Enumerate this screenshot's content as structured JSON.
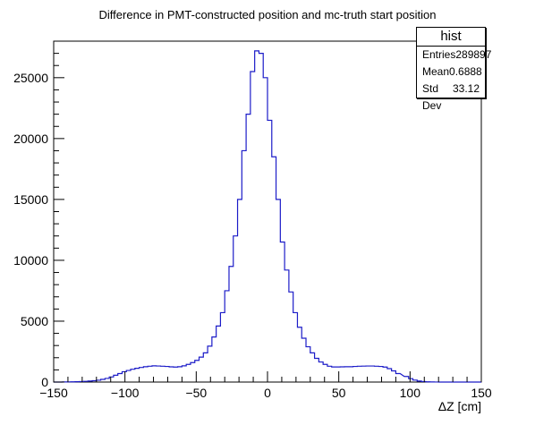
{
  "chart_data": {
    "type": "histogram",
    "title": "Difference in PMT-constructed position and mc-truth start position",
    "xlabel": "ΔZ [cm]",
    "ylabel": "",
    "xlim": [
      -150,
      150
    ],
    "ylim": [
      0,
      28000
    ],
    "xticks": [
      -150,
      -100,
      -50,
      0,
      50,
      100,
      150
    ],
    "yticks": [
      0,
      5000,
      10000,
      15000,
      20000,
      25000
    ],
    "xtick_labels": [
      "−150",
      "−100",
      "−50",
      "0",
      "50",
      "100",
      "150"
    ],
    "ytick_labels": [
      "0",
      "5000",
      "10000",
      "15000",
      "20000",
      "25000"
    ],
    "bin_width": 3,
    "x": [
      -150,
      -147,
      -144,
      -141,
      -138,
      -135,
      -132,
      -129,
      -126,
      -123,
      -120,
      -117,
      -114,
      -111,
      -108,
      -105,
      -102,
      -99,
      -96,
      -93,
      -90,
      -87,
      -84,
      -81,
      -78,
      -75,
      -72,
      -69,
      -66,
      -63,
      -60,
      -57,
      -54,
      -51,
      -48,
      -45,
      -42,
      -39,
      -36,
      -33,
      -30,
      -27,
      -24,
      -21,
      -18,
      -15,
      -12,
      -9,
      -6,
      -3,
      0,
      3,
      6,
      9,
      12,
      15,
      18,
      21,
      24,
      27,
      30,
      33,
      36,
      39,
      42,
      45,
      48,
      51,
      54,
      57,
      60,
      63,
      66,
      69,
      72,
      75,
      78,
      81,
      84,
      87,
      90,
      96,
      99,
      102,
      105,
      108,
      111,
      114,
      117,
      120,
      123,
      126,
      129,
      132,
      135,
      138,
      141,
      144,
      147
    ],
    "values": [
      0,
      0,
      10,
      15,
      20,
      30,
      40,
      60,
      80,
      110,
      150,
      220,
      300,
      420,
      560,
      700,
      850,
      950,
      1050,
      1130,
      1200,
      1260,
      1300,
      1330,
      1320,
      1300,
      1280,
      1250,
      1230,
      1260,
      1330,
      1450,
      1600,
      1780,
      2050,
      2400,
      2950,
      3700,
      4600,
      5700,
      7500,
      9500,
      12000,
      15000,
      19000,
      22000,
      25500,
      27200,
      27000,
      25000,
      21500,
      18500,
      15000,
      11500,
      9200,
      7400,
      5700,
      4500,
      3600,
      2900,
      2400,
      1950,
      1650,
      1450,
      1300,
      1240,
      1240,
      1250,
      1260,
      1260,
      1280,
      1300,
      1310,
      1320,
      1320,
      1300,
      1280,
      1230,
      1100,
      920,
      700,
      460,
      280,
      160,
      80,
      40,
      20,
      10,
      5,
      0,
      0,
      0,
      0,
      0,
      0,
      0,
      0,
      0,
      0
    ],
    "line_color": "#1c1cc8",
    "grid": false,
    "legend": "top-right",
    "stats_box": {
      "name": "hist",
      "rows": [
        {
          "label": "Entries",
          "value": "289897"
        },
        {
          "label": "Mean",
          "value": "0.6888"
        },
        {
          "label": "Std Dev",
          "value": "33.12"
        }
      ]
    }
  }
}
